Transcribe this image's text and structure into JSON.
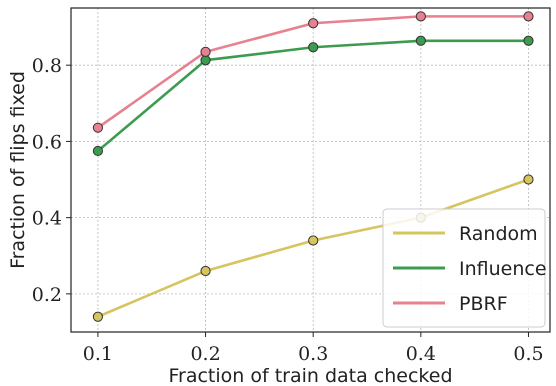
{
  "chart_data": {
    "type": "line",
    "xlabel": "Fraction of train data checked",
    "ylabel": "Fraction of flips fixed",
    "x": [
      0.1,
      0.2,
      0.3,
      0.4,
      0.5
    ],
    "x_ticks": [
      "0.1",
      "0.2",
      "0.3",
      "0.4",
      "0.5"
    ],
    "y_ticks": [
      "0.2",
      "0.4",
      "0.6",
      "0.8"
    ],
    "xlim": [
      0.075,
      0.52
    ],
    "ylim": [
      0.1,
      0.95
    ],
    "grid": true,
    "legend_position": "lower-right",
    "series": [
      {
        "name": "Random",
        "color": "#d6c45f",
        "values": [
          0.14,
          0.26,
          0.34,
          0.4,
          0.5
        ]
      },
      {
        "name": "Influence",
        "color": "#3d9b4f",
        "values": [
          0.575,
          0.813,
          0.847,
          0.864,
          0.864
        ]
      },
      {
        "name": "PBRF",
        "color": "#e8818f",
        "values": [
          0.636,
          0.835,
          0.91,
          0.928,
          0.928
        ]
      }
    ]
  }
}
